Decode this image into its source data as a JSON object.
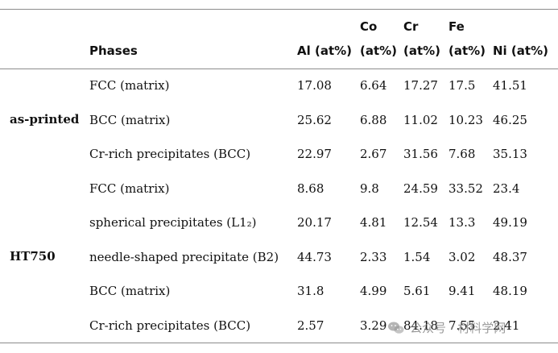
{
  "table": {
    "headers": {
      "phases": "Phases",
      "al": "Al (at%)",
      "co_1": "Co",
      "co_2": "(at%)",
      "cr_1": "Cr",
      "cr_2": "(at%)",
      "fe_1": "Fe",
      "fe_2": "(at%)",
      "ni": "Ni (at%)"
    },
    "groups": {
      "as_printed": "as-printed",
      "ht750": "HT750"
    },
    "rows": [
      {
        "phase": "FCC (matrix)",
        "al": "17.08",
        "co": "6.64",
        "cr": "17.27",
        "fe": "17.5",
        "ni": "41.51"
      },
      {
        "phase": "BCC (matrix)",
        "al": "25.62",
        "co": "6.88",
        "cr": "11.02",
        "fe": "10.23",
        "ni": "46.25"
      },
      {
        "phase": "Cr-rich precipitates (BCC)",
        "al": "22.97",
        "co": "2.67",
        "cr": "31.56",
        "fe": "7.68",
        "ni": "35.13"
      },
      {
        "phase": "FCC (matrix)",
        "al": "8.68",
        "co": "9.8",
        "cr": "24.59",
        "fe": "33.52",
        "ni": "23.4"
      },
      {
        "phase": "spherical precipitates (L1₂)",
        "al": "20.17",
        "co": "4.81",
        "cr": "12.54",
        "fe": "13.3",
        "ni": "49.19"
      },
      {
        "phase": "needle-shaped precipitate (B2)",
        "al": "44.73",
        "co": "2.33",
        "cr": "1.54",
        "fe": "3.02",
        "ni": "48.37"
      },
      {
        "phase": "BCC (matrix)",
        "al": "31.8",
        "co": "4.99",
        "cr": "5.61",
        "fe": "9.41",
        "ni": "48.19"
      },
      {
        "phase": "Cr-rich precipitates (BCC)",
        "al": "2.57",
        "co": "3.29",
        "cr": "84.18",
        "fe": "7.55",
        "ni": "2.41"
      }
    ]
  },
  "watermark": {
    "text": "公众号 · 材料学网",
    "icon": "wechat-icon"
  }
}
